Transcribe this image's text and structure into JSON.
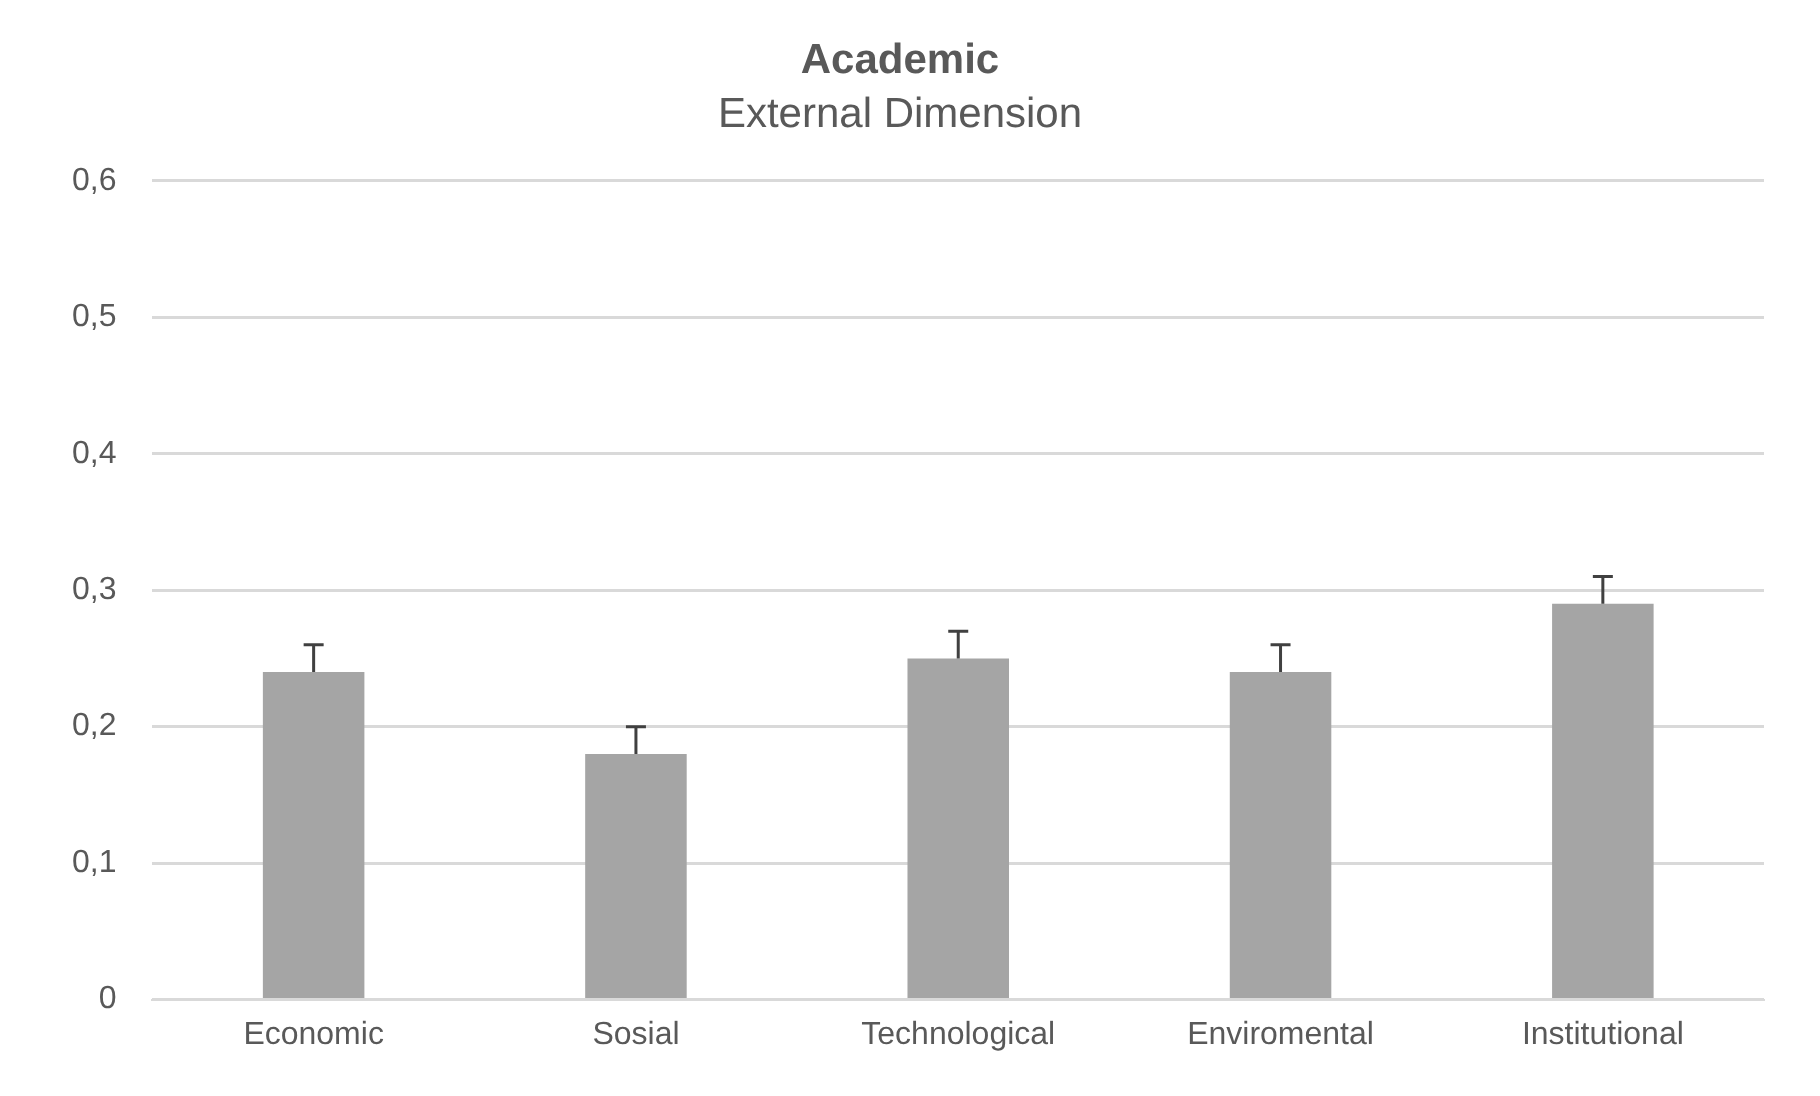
{
  "chart_data": {
    "type": "bar",
    "title": "Academic",
    "subtitle": "External Dimension",
    "categories": [
      "Economic",
      "Sosial",
      "Technological",
      "Enviromental",
      "Institutional"
    ],
    "values": [
      0.24,
      0.18,
      0.25,
      0.24,
      0.29
    ],
    "errors": [
      [
        0.24,
        0.26
      ],
      [
        0.18,
        0.2
      ],
      [
        0.25,
        0.27
      ],
      [
        0.24,
        0.26
      ],
      [
        0.29,
        0.31
      ]
    ],
    "color": "#a5a5a5",
    "ylim": [
      0,
      0.6
    ],
    "yticks": [
      0,
      {
        "value": 0.1,
        "label": "0,1"
      },
      {
        "value": 0.2,
        "label": "0,2"
      },
      {
        "value": 0.3,
        "label": "0,3"
      },
      {
        "value": 0.4,
        "label": "0,4"
      },
      {
        "value": 0.5,
        "label": "0,5"
      },
      {
        "value": 0.6,
        "label": "0,6"
      }
    ],
    "grid": "y",
    "legend": false
  }
}
